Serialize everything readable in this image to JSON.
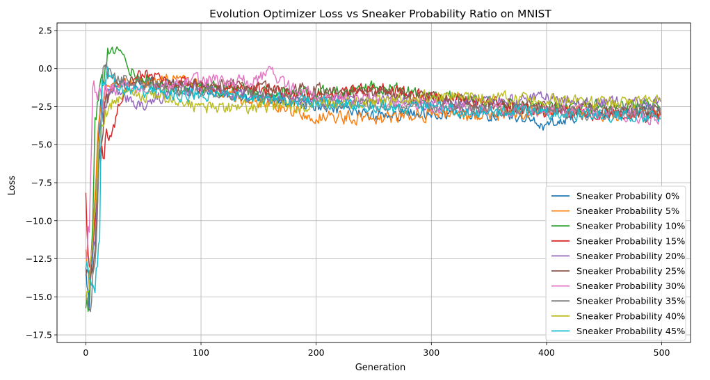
{
  "chart_data": {
    "type": "line",
    "title": "Evolution Optimizer Loss vs Sneaker Probability Ratio on MNIST",
    "xlabel": "Generation",
    "ylabel": "Loss",
    "xlim": [
      -25,
      525
    ],
    "ylim": [
      -18,
      3
    ],
    "xticks": [
      0,
      100,
      200,
      300,
      400,
      500
    ],
    "yticks": [
      2.5,
      0.0,
      -2.5,
      -5.0,
      -7.5,
      -10.0,
      -12.5,
      -15.0,
      -17.5
    ],
    "ytick_labels": [
      "2.5",
      "0.0",
      "−2.5",
      "−5.0",
      "−7.5",
      "−10.0",
      "−12.5",
      "−15.0",
      "−17.5"
    ],
    "xtick_labels": [
      "0",
      "100",
      "200",
      "300",
      "400",
      "500"
    ],
    "grid": true,
    "legend_position": "lower-right",
    "n_points": 500,
    "x_step": 1,
    "series": [
      {
        "name": "Sneaker Probability 0%",
        "color": "#1f77b4",
        "anchors": [
          [
            0,
            -13.5
          ],
          [
            3,
            -15.5
          ],
          [
            6,
            -12
          ],
          [
            9,
            -8
          ],
          [
            12,
            -3
          ],
          [
            16,
            -1.5
          ],
          [
            25,
            -1.2
          ],
          [
            50,
            -1
          ],
          [
            80,
            -0.9
          ],
          [
            100,
            -1.3
          ],
          [
            150,
            -2.0
          ],
          [
            200,
            -2.5
          ],
          [
            250,
            -3.1
          ],
          [
            300,
            -2.9
          ],
          [
            350,
            -3.0
          ],
          [
            380,
            -3.2
          ],
          [
            400,
            -3.8
          ],
          [
            420,
            -3.2
          ],
          [
            460,
            -2.9
          ],
          [
            499,
            -2.7
          ]
        ],
        "noise": 0.35
      },
      {
        "name": "Sneaker Probability 5%",
        "color": "#ff7f0e",
        "anchors": [
          [
            0,
            -12.5
          ],
          [
            3,
            -14.5
          ],
          [
            6,
            -11
          ],
          [
            9,
            -7
          ],
          [
            12,
            -2.5
          ],
          [
            16,
            -1.3
          ],
          [
            25,
            -1.1
          ],
          [
            50,
            -0.8
          ],
          [
            80,
            -0.7
          ],
          [
            100,
            -1.2
          ],
          [
            150,
            -2.2
          ],
          [
            200,
            -3.1
          ],
          [
            250,
            -3.3
          ],
          [
            300,
            -3.0
          ],
          [
            350,
            -3.1
          ],
          [
            400,
            -2.8
          ],
          [
            450,
            -3.0
          ],
          [
            499,
            -3.0
          ]
        ],
        "noise": 0.38
      },
      {
        "name": "Sneaker Probability 10%",
        "color": "#2ca02c",
        "anchors": [
          [
            0,
            -16.5
          ],
          [
            2,
            -15.5
          ],
          [
            5,
            -12
          ],
          [
            8,
            -4
          ],
          [
            12,
            -2
          ],
          [
            17,
            0.5
          ],
          [
            22,
            1.2
          ],
          [
            28,
            1.0
          ],
          [
            35,
            0.3
          ],
          [
            45,
            -0.5
          ],
          [
            70,
            -1.2
          ],
          [
            100,
            -1.3
          ],
          [
            150,
            -1.5
          ],
          [
            200,
            -1.6
          ],
          [
            250,
            -1.3
          ],
          [
            300,
            -1.7
          ],
          [
            350,
            -2.2
          ],
          [
            400,
            -2.6
          ],
          [
            450,
            -2.5
          ],
          [
            499,
            -2.3
          ]
        ],
        "noise": 0.4
      },
      {
        "name": "Sneaker Probability 15%",
        "color": "#d62728",
        "anchors": [
          [
            0,
            -9.0
          ],
          [
            3,
            -13
          ],
          [
            7,
            -11
          ],
          [
            12,
            -6
          ],
          [
            18,
            -4.5
          ],
          [
            24,
            -4.0
          ],
          [
            30,
            -2
          ],
          [
            40,
            -1
          ],
          [
            50,
            -0.3
          ],
          [
            70,
            -0.8
          ],
          [
            100,
            -1.2
          ],
          [
            150,
            -1.4
          ],
          [
            200,
            -1.8
          ],
          [
            250,
            -1.3
          ],
          [
            300,
            -1.8
          ],
          [
            350,
            -2.3
          ],
          [
            400,
            -2.8
          ],
          [
            450,
            -3.0
          ],
          [
            499,
            -3.1
          ]
        ],
        "noise": 0.38
      },
      {
        "name": "Sneaker Probability 20%",
        "color": "#9467bd",
        "anchors": [
          [
            0,
            -12.5
          ],
          [
            4,
            -14
          ],
          [
            8,
            -11
          ],
          [
            12,
            -4
          ],
          [
            18,
            -2
          ],
          [
            25,
            -1.5
          ],
          [
            40,
            -2.0
          ],
          [
            50,
            -2.5
          ],
          [
            60,
            -2.0
          ],
          [
            80,
            -1.6
          ],
          [
            100,
            -1.2
          ],
          [
            150,
            -1.8
          ],
          [
            200,
            -2.2
          ],
          [
            250,
            -2.0
          ],
          [
            300,
            -2.3
          ],
          [
            350,
            -2.2
          ],
          [
            400,
            -2.0
          ],
          [
            450,
            -2.2
          ],
          [
            499,
            -2.3
          ]
        ],
        "noise": 0.38
      },
      {
        "name": "Sneaker Probability 25%",
        "color": "#8c564b",
        "anchors": [
          [
            0,
            -13.0
          ],
          [
            4,
            -14.5
          ],
          [
            8,
            -12
          ],
          [
            12,
            -5
          ],
          [
            16,
            -2.5
          ],
          [
            22,
            -1.2
          ],
          [
            30,
            -0.8
          ],
          [
            50,
            -1.0
          ],
          [
            80,
            -1.2
          ],
          [
            100,
            -1.1
          ],
          [
            150,
            -1.2
          ],
          [
            200,
            -1.4
          ],
          [
            250,
            -1.6
          ],
          [
            300,
            -2.0
          ],
          [
            350,
            -2.3
          ],
          [
            400,
            -2.6
          ],
          [
            450,
            -2.7
          ],
          [
            499,
            -2.8
          ]
        ],
        "noise": 0.38
      },
      {
        "name": "Sneaker Probability 30%",
        "color": "#e377c2",
        "anchors": [
          [
            0,
            -12.0
          ],
          [
            3,
            -10
          ],
          [
            6,
            -1.0
          ],
          [
            9,
            -0.7
          ],
          [
            12,
            -2
          ],
          [
            18,
            -1.4
          ],
          [
            30,
            -1.3
          ],
          [
            60,
            -1.1
          ],
          [
            100,
            -0.8
          ],
          [
            130,
            -0.9
          ],
          [
            150,
            -0.6
          ],
          [
            160,
            -0.2
          ],
          [
            170,
            -1.0
          ],
          [
            200,
            -1.8
          ],
          [
            250,
            -2.1
          ],
          [
            300,
            -2.4
          ],
          [
            350,
            -2.7
          ],
          [
            400,
            -2.7
          ],
          [
            450,
            -3.0
          ],
          [
            499,
            -3.2
          ]
        ],
        "noise": 0.4
      },
      {
        "name": "Sneaker Probability 35%",
        "color": "#7f7f7f",
        "anchors": [
          [
            0,
            -14.5
          ],
          [
            4,
            -15
          ],
          [
            8,
            -13
          ],
          [
            12,
            -5
          ],
          [
            15,
            1.0
          ],
          [
            18,
            0.2
          ],
          [
            25,
            -0.6
          ],
          [
            50,
            -1.0
          ],
          [
            80,
            -1.4
          ],
          [
            100,
            -1.6
          ],
          [
            150,
            -1.8
          ],
          [
            200,
            -2.2
          ],
          [
            250,
            -2.4
          ],
          [
            300,
            -2.5
          ],
          [
            350,
            -2.7
          ],
          [
            400,
            -2.8
          ],
          [
            450,
            -3.0
          ],
          [
            499,
            -2.8
          ]
        ],
        "noise": 0.38
      },
      {
        "name": "Sneaker Probability 40%",
        "color": "#bcbd22",
        "anchors": [
          [
            0,
            -15.0
          ],
          [
            3,
            -14
          ],
          [
            7,
            -10
          ],
          [
            11,
            -5
          ],
          [
            15,
            -3
          ],
          [
            20,
            -2.5
          ],
          [
            30,
            -1.8
          ],
          [
            60,
            -1.7
          ],
          [
            100,
            -2.6
          ],
          [
            150,
            -2.5
          ],
          [
            200,
            -2.4
          ],
          [
            250,
            -2.1
          ],
          [
            300,
            -1.8
          ],
          [
            350,
            -1.9
          ],
          [
            400,
            -2.1
          ],
          [
            450,
            -2.3
          ],
          [
            499,
            -2.2
          ]
        ],
        "noise": 0.38
      },
      {
        "name": "Sneaker Probability 45%",
        "color": "#17becf",
        "anchors": [
          [
            0,
            -13.0
          ],
          [
            4,
            -14
          ],
          [
            8,
            -15
          ],
          [
            12,
            -11
          ],
          [
            14,
            -1
          ],
          [
            16,
            0.1
          ],
          [
            20,
            -0.6
          ],
          [
            30,
            -1.2
          ],
          [
            60,
            -1.6
          ],
          [
            100,
            -1.8
          ],
          [
            150,
            -1.9
          ],
          [
            200,
            -2.2
          ],
          [
            250,
            -2.5
          ],
          [
            300,
            -2.6
          ],
          [
            350,
            -2.8
          ],
          [
            400,
            -2.9
          ],
          [
            450,
            -3.1
          ],
          [
            499,
            -3.2
          ]
        ],
        "noise": 0.38
      }
    ]
  }
}
